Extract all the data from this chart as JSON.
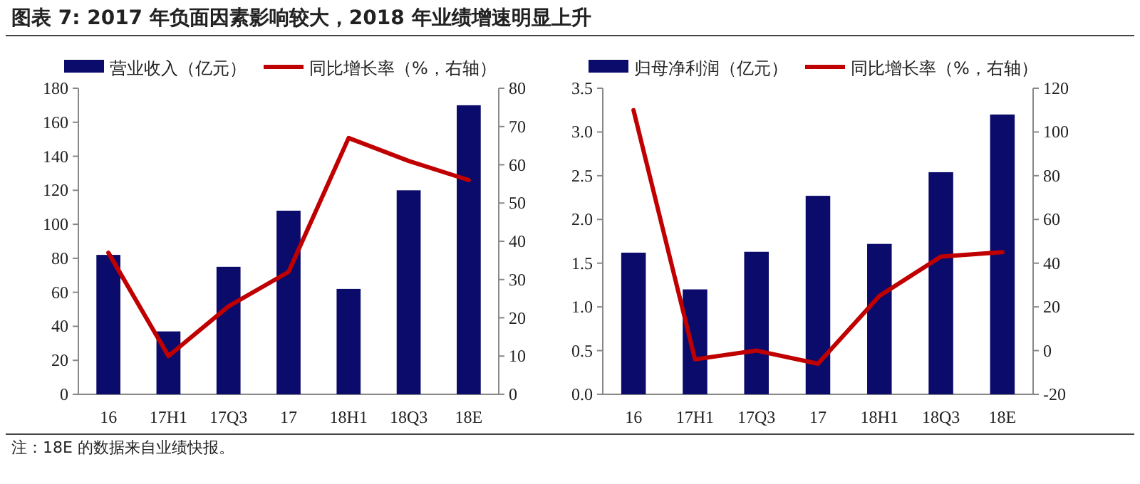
{
  "chart_data": [
    {
      "type": "bar",
      "title": "图表 7: 2017 年负面因素影响较大，2018 年业绩增速明显上升",
      "annotations": [
        "注：18E 的数据来自业绩快报。"
      ],
      "categories": [
        "16",
        "17H1",
        "17Q3",
        "17",
        "18H1",
        "18Q3",
        "18E"
      ],
      "series": [
        {
          "name": "营业收入（亿元）",
          "color": "#0b0b6b",
          "values": [
            82,
            37,
            75,
            108,
            62,
            120,
            170
          ]
        },
        {
          "name": "同比增长率（%，右轴）",
          "type": "line",
          "axis": "y2",
          "color": "#c00000",
          "values": [
            37,
            10,
            23,
            32,
            67,
            61,
            56
          ]
        }
      ],
      "ylim": [
        0,
        180
      ],
      "yticks": [
        0,
        20,
        40,
        60,
        80,
        100,
        120,
        140,
        160,
        180
      ],
      "y2lim": [
        0,
        80
      ],
      "y2ticks": [
        0,
        10,
        20,
        30,
        40,
        50,
        60,
        70,
        80
      ],
      "legend": "top"
    },
    {
      "type": "bar",
      "categories": [
        "16",
        "17H1",
        "17Q3",
        "17",
        "18H1",
        "18Q3",
        "18E"
      ],
      "series": [
        {
          "name": "归母净利润（亿元）",
          "color": "#0b0b6b",
          "values": [
            1.62,
            1.2,
            1.63,
            2.27,
            1.72,
            2.54,
            3.2
          ]
        },
        {
          "name": "同比增长率（%，右轴）",
          "type": "line",
          "axis": "y2",
          "color": "#c00000",
          "values": [
            110,
            -4,
            0,
            -6,
            25,
            43,
            45
          ]
        }
      ],
      "ylim": [
        0,
        3.5
      ],
      "yticks": [
        {
          "value": 0,
          "label": "0.0"
        },
        {
          "value": 0.5,
          "label": "0.5"
        },
        {
          "value": 1,
          "label": "1.0"
        },
        {
          "value": 1.5,
          "label": "1.5"
        },
        {
          "value": 2,
          "label": "2.0"
        },
        {
          "value": 2.5,
          "label": "2.5"
        },
        {
          "value": 3,
          "label": "3.0"
        },
        {
          "value": 3.5,
          "label": "3.5"
        }
      ],
      "y2lim": [
        -20,
        120
      ],
      "y2ticks": [
        -20,
        0,
        20,
        40,
        60,
        80,
        100,
        120
      ],
      "legend": "top"
    }
  ]
}
